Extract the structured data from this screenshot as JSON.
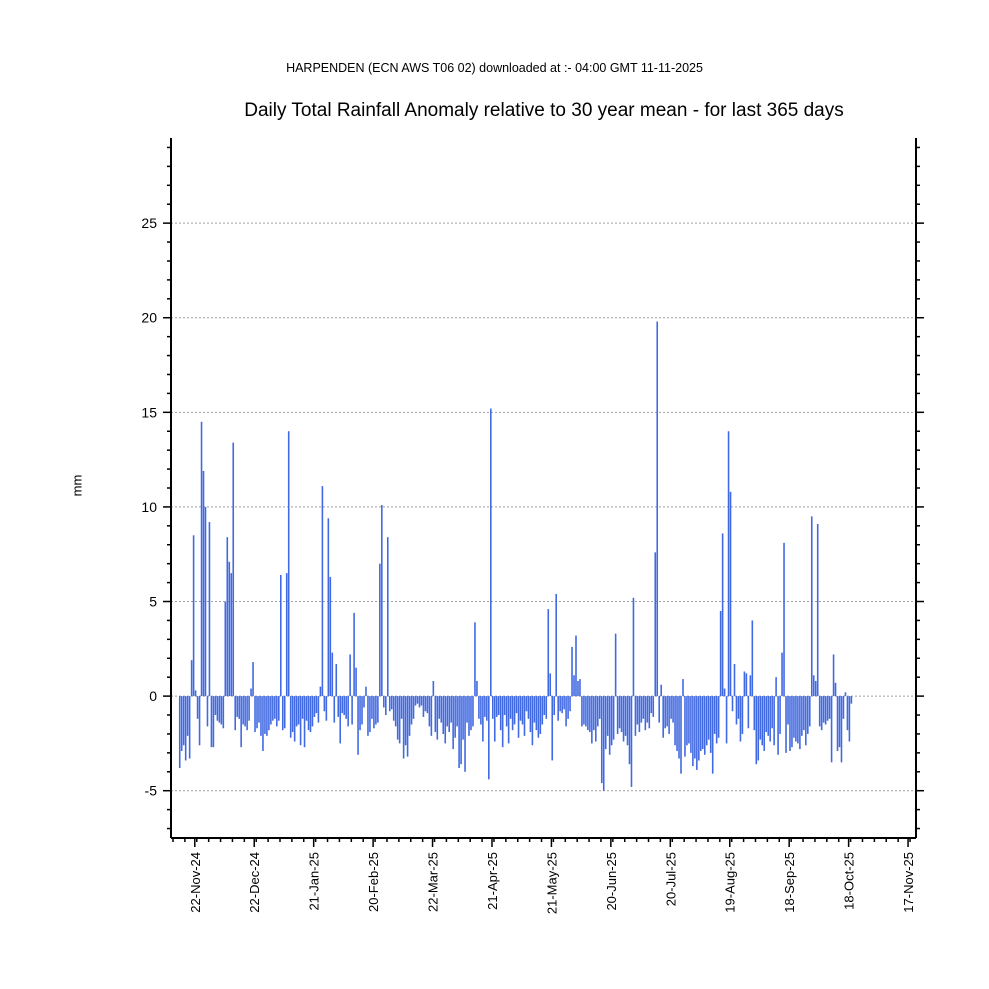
{
  "subtitle": "HARPENDEN (ECN AWS T06 02) downloaded at :- 04:00 GMT 11-11-2025",
  "title": "Daily Total Rainfall Anomaly relative to 30 year mean - for last 365 days",
  "ylabel": "mm",
  "chart_data": {
    "type": "bar",
    "title": "Daily Total Rainfall Anomaly relative to 30 year mean - for last 365 days",
    "xlabel": "",
    "ylabel": "mm",
    "ylim": [
      -7.5,
      29.5
    ],
    "yticks": [
      -5,
      0,
      5,
      10,
      15,
      20,
      25
    ],
    "ytick_labels": [
      "-5",
      "0",
      "5",
      "10",
      "15",
      "20",
      "25"
    ],
    "grid": "horizontal dotted at major ticks",
    "bar_color": "#4169e1",
    "x_days": 374,
    "first_bar_day": 3,
    "xticks": [
      {
        "day": 11,
        "label": "22-Nov-24"
      },
      {
        "day": 41,
        "label": "22-Dec-24"
      },
      {
        "day": 71,
        "label": "21-Jan-25"
      },
      {
        "day": 101,
        "label": "20-Feb-25"
      },
      {
        "day": 131,
        "label": "22-Mar-25"
      },
      {
        "day": 161,
        "label": "21-Apr-25"
      },
      {
        "day": 191,
        "label": "21-May-25"
      },
      {
        "day": 221,
        "label": "20-Jun-25"
      },
      {
        "day": 251,
        "label": "20-Jul-25"
      },
      {
        "day": 281,
        "label": "19-Aug-25"
      },
      {
        "day": 311,
        "label": "18-Sep-25"
      },
      {
        "day": 341,
        "label": "18-Oct-25"
      },
      {
        "day": 371,
        "label": "17-Nov-25"
      }
    ],
    "values": [
      -3.8,
      -2.9,
      -2.6,
      -3.4,
      -2.1,
      -3.3,
      1.9,
      8.5,
      0.3,
      -1.2,
      -2.6,
      14.5,
      11.9,
      10.0,
      -1.6,
      9.2,
      -2.7,
      -2.7,
      -1.0,
      -1.3,
      -1.4,
      -1.5,
      -1.7,
      5.0,
      8.4,
      7.1,
      6.5,
      13.4,
      -1.8,
      -1.1,
      -1.2,
      -2.7,
      -1.5,
      -1.6,
      -1.8,
      -1.3,
      0.4,
      1.8,
      -1.9,
      -1.7,
      -1.4,
      -2.1,
      -2.9,
      -2.0,
      -2.1,
      -1.8,
      -1.5,
      -1.3,
      -1.2,
      -1.6,
      -1.3,
      6.4,
      -1.8,
      -1.7,
      6.5,
      14.0,
      -2.2,
      -1.9,
      -2.4,
      -1.6,
      -1.5,
      -2.6,
      -1.2,
      -2.7,
      -1.3,
      -1.8,
      -1.9,
      -1.6,
      -1.1,
      -0.9,
      -1.4,
      0.5,
      11.1,
      -0.8,
      -1.3,
      9.4,
      6.3,
      2.3,
      -1.4,
      1.7,
      -1.1,
      -2.5,
      -0.9,
      -1.0,
      -1.2,
      -1.6,
      2.2,
      -1.5,
      4.4,
      1.5,
      -3.1,
      -1.8,
      -1.5,
      -0.6,
      0.5,
      -2.1,
      -1.9,
      -1.2,
      -1.7,
      -1.5,
      -1.4,
      7.0,
      10.1,
      -0.6,
      -1.0,
      8.4,
      -0.8,
      -0.7,
      -1.3,
      -1.6,
      -2.3,
      -2.5,
      -1.2,
      -3.3,
      -2.6,
      -3.2,
      -2.1,
      -1.5,
      -1.2,
      -0.5,
      -0.4,
      -0.6,
      -0.5,
      -1.1,
      -0.8,
      -0.9,
      -1.6,
      -2.1,
      0.8,
      -1.9,
      -2.3,
      -1.2,
      -1.4,
      -2.0,
      -2.5,
      -1.6,
      -1.9,
      -1.4,
      -2.8,
      -2.2,
      -1.6,
      -3.8,
      -3.6,
      -2.3,
      -4.0,
      -1.4,
      -2.1,
      -1.8,
      -1.6,
      3.9,
      0.8,
      -1.2,
      -1.5,
      -2.4,
      -1.1,
      -1.3,
      -4.4,
      15.2,
      -1.2,
      -2.4,
      -1.1,
      -1.0,
      -1.8,
      -2.7,
      -1.0,
      -1.6,
      -2.5,
      -1.2,
      -1.8,
      -1.5,
      -0.9,
      -2.2,
      -1.3,
      -1.5,
      -2.1,
      -0.8,
      -1.2,
      -1.9,
      -2.6,
      -1.4,
      -1.8,
      -2.2,
      -2.0,
      -1.5,
      -1.0,
      -1.2,
      4.6,
      1.2,
      -3.4,
      -1.0,
      5.4,
      -1.3,
      -0.8,
      -0.9,
      -0.7,
      -1.6,
      -1.2,
      -0.8,
      2.6,
      1.1,
      3.2,
      0.8,
      0.9,
      -1.6,
      -1.5,
      -1.6,
      -1.8,
      -1.9,
      -2.5,
      -1.8,
      -2.4,
      -1.6,
      -1.2,
      -4.6,
      -5.0,
      -2.8,
      -2.1,
      -3.1,
      -2.6,
      -2.3,
      3.3,
      -2.0,
      -1.7,
      -1.9,
      -2.4,
      -2.1,
      -2.6,
      -3.6,
      -4.8,
      5.2,
      -2.1,
      -1.5,
      -1.9,
      -1.4,
      -1.2,
      -1.8,
      -1.4,
      -1.7,
      -0.9,
      -1.1,
      7.6,
      19.8,
      -1.4,
      0.6,
      -2.2,
      -1.7,
      -1.6,
      -2.0,
      -1.2,
      -1.4,
      -2.6,
      -2.9,
      -3.3,
      -4.1,
      0.9,
      -3.2,
      -2.6,
      -2.5,
      -3.0,
      -3.7,
      -3.3,
      -3.9,
      -3.4,
      -2.9,
      -2.8,
      -3.1,
      -2.6,
      -2.3,
      -3.0,
      -4.1,
      -2.0,
      -2.5,
      -2.2,
      4.5,
      8.6,
      0.4,
      -2.5,
      14.0,
      10.8,
      -0.8,
      1.7,
      -1.5,
      -1.2,
      -2.4,
      -2.0,
      1.3,
      1.2,
      -1.7,
      1.1,
      4.0,
      -1.8,
      -3.6,
      -3.4,
      -2.3,
      -2.6,
      -2.9,
      -1.9,
      -2.1,
      -2.4,
      -1.7,
      -2.6,
      1.0,
      -3.1,
      -2.0,
      2.3,
      8.1,
      -3.0,
      -1.5,
      -2.9,
      -2.7,
      -2.2,
      -2.4,
      -2.5,
      -2.8,
      -2.1,
      -1.8,
      -2.6,
      -2.0,
      -1.6,
      9.5,
      1.1,
      0.8,
      9.1,
      -1.6,
      -1.8,
      -1.4,
      -1.5,
      -1.3,
      -1.2,
      -3.5,
      2.2,
      0.7,
      -2.9,
      -2.7,
      -3.5,
      -1.2,
      0.2,
      -1.8,
      -2.4,
      -0.4
    ]
  }
}
